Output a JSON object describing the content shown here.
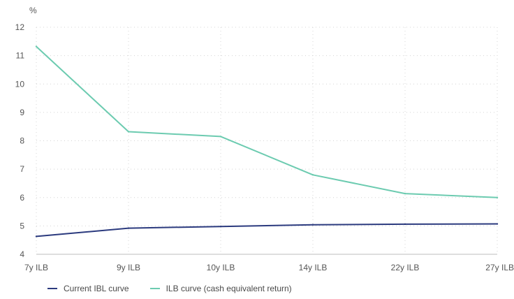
{
  "chart_data": {
    "type": "line",
    "y_unit": "%",
    "categories": [
      "7y ILB",
      "9y ILB",
      "10y ILB",
      "14y ILB",
      "22y ILB",
      "27y ILB"
    ],
    "ylim": [
      4,
      12
    ],
    "yticks": [
      4,
      5,
      6,
      7,
      8,
      9,
      10,
      11,
      12
    ],
    "grid": true,
    "legend_position": "bottom-left",
    "series": [
      {
        "name": "Current IBL curve",
        "color": "#2b3a7e",
        "values": [
          4.63,
          4.92,
          4.98,
          5.04,
          5.06,
          5.07
        ]
      },
      {
        "name": "ILB curve (cash equivalent return)",
        "color": "#6ccbb0",
        "values": [
          11.32,
          8.32,
          8.15,
          6.8,
          6.14,
          6.0
        ]
      }
    ]
  }
}
